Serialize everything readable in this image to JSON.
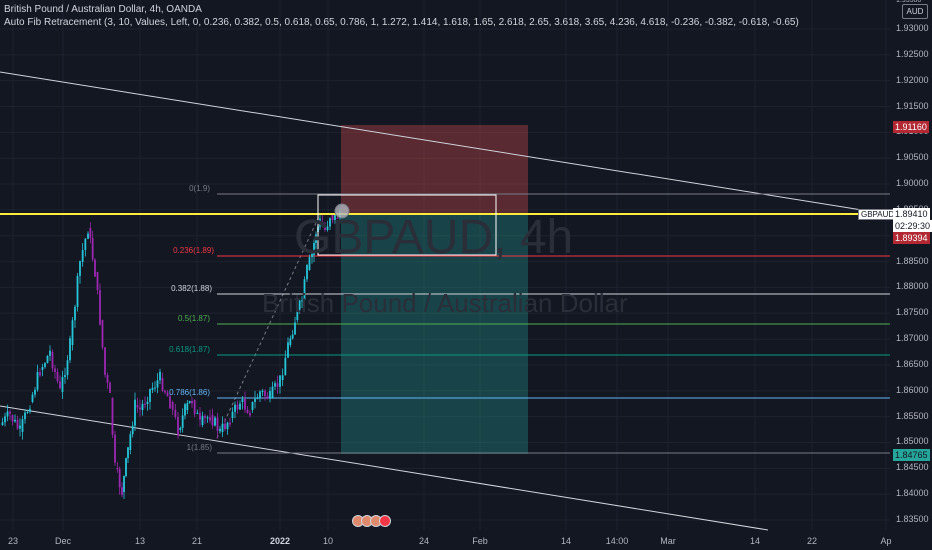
{
  "header": {
    "title": "British Pound / Australian Dollar, 4h, OANDA",
    "indicator": "Auto Fib Retracement (3, 10, Values, Left, 0, 0.236, 0.382, 0.5, 0.618, 0.65, 0.786, 1, 1.272, 1.414, 1.618, 1.65, 2.618, 2.65, 3.618, 3.65, 4.236, 4.618, -0.236, -0.382, -0.618, -0.65)"
  },
  "watermark": {
    "symbol": "GBPAUD, 4h",
    "name": "British Pound / Australian Dollar"
  },
  "price_scale": {
    "currency": "AUD",
    "top_partial": "1.93500",
    "ticks": [
      "1.93000",
      "1.92500",
      "1.92000",
      "1.91500",
      "1.91000",
      "1.90500",
      "1.90000",
      "1.89500",
      "1.89000",
      "1.88500",
      "1.88000",
      "1.87500",
      "1.87000",
      "1.86500",
      "1.86000",
      "1.85500",
      "1.85000",
      "1.84500",
      "1.84000",
      "1.83500"
    ]
  },
  "price_tags": {
    "target": "1.91160",
    "symbol_label": "GBPAUD",
    "last_price": "1.89410",
    "countdown": "02:29:30",
    "stop_price": "1.89394",
    "lower": "1.84765"
  },
  "time_axis": {
    "labels": [
      "23",
      "Dec",
      "13",
      "21",
      "2022",
      "10",
      "24",
      "Feb",
      "14",
      "14:00",
      "Mar",
      "14",
      "22",
      "Ap"
    ]
  },
  "fib_levels": [
    {
      "label": "0(1.9)",
      "color": "#787b86"
    },
    {
      "label": "0.236(1.89)",
      "color": "#f23645"
    },
    {
      "label": "0.382(1.88)",
      "color": "#d1d4dc"
    },
    {
      "label": "0.5(1.87)",
      "color": "#4caf50"
    },
    {
      "label": "0.618(1.87)",
      "color": "#089981"
    },
    {
      "label": "0.786(1.86)",
      "color": "#64b5f6"
    },
    {
      "label": "1(1.85)",
      "color": "#787b86"
    }
  ],
  "colors": {
    "background": "#131722",
    "up": "#26c6da",
    "down": "#9c27b0",
    "horizontal_line": "#ffeb3b",
    "profit_zone": "#26a69a",
    "loss_zone": "#ef5350"
  }
}
